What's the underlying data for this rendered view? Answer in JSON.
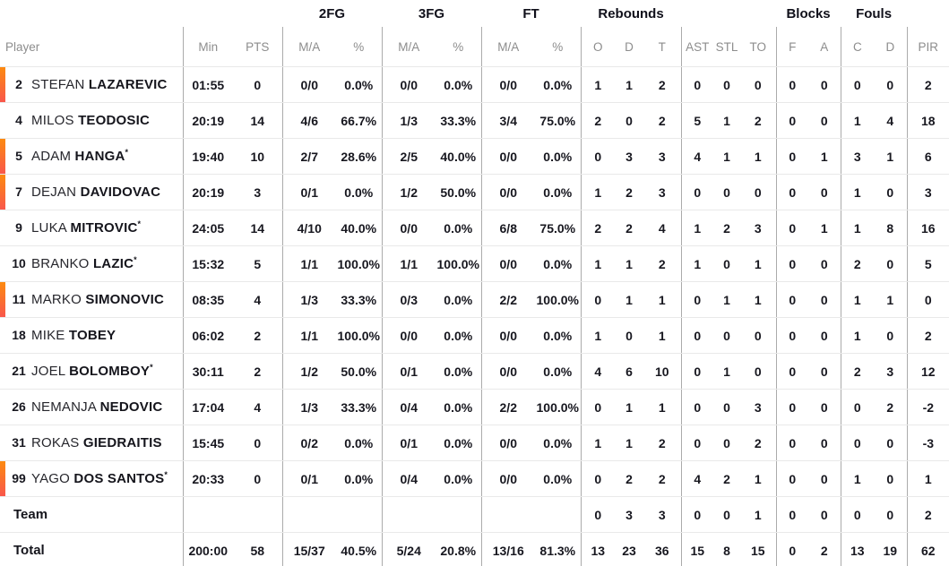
{
  "colors": {
    "on_court_gradient_top": "#FC8A10",
    "on_court_gradient_bottom": "#F9574B",
    "header_text": "#10101a",
    "subheader_text": "#8d8d8d",
    "row_separator": "#e9e9e9",
    "group_separator": "#ababab"
  },
  "header": {
    "groups": {
      "fg2": "2FG",
      "fg3": "3FG",
      "ft": "FT",
      "rebounds": "Rebounds",
      "blocks": "Blocks",
      "fouls": "Fouls"
    },
    "cols": {
      "player": "Player",
      "min": "Min",
      "pts": "PTS",
      "ma": "M/A",
      "pct": "%",
      "reb_o": "O",
      "reb_d": "D",
      "reb_t": "T",
      "ast": "AST",
      "stl": "STL",
      "to": "TO",
      "blk_f": "F",
      "blk_a": "A",
      "foul_c": "C",
      "foul_d": "D",
      "pir": "PIR"
    }
  },
  "players": [
    {
      "number": "2",
      "first": "STEFAN",
      "last": "LAZAREVIC",
      "star": "",
      "on_court": true,
      "min": "01:55",
      "pts": "0",
      "fg2_ma": "0/0",
      "fg2_pct": "0.0%",
      "fg3_ma": "0/0",
      "fg3_pct": "0.0%",
      "ft_ma": "0/0",
      "ft_pct": "0.0%",
      "reb_o": "1",
      "reb_d": "1",
      "reb_t": "2",
      "ast": "0",
      "stl": "0",
      "to": "0",
      "blk_f": "0",
      "blk_a": "0",
      "foul_c": "0",
      "foul_d": "0",
      "pir": "2"
    },
    {
      "number": "4",
      "first": "MILOS",
      "last": "TEODOSIC",
      "star": "",
      "on_court": false,
      "min": "20:19",
      "pts": "14",
      "fg2_ma": "4/6",
      "fg2_pct": "66.7%",
      "fg3_ma": "1/3",
      "fg3_pct": "33.3%",
      "ft_ma": "3/4",
      "ft_pct": "75.0%",
      "reb_o": "2",
      "reb_d": "0",
      "reb_t": "2",
      "ast": "5",
      "stl": "1",
      "to": "2",
      "blk_f": "0",
      "blk_a": "0",
      "foul_c": "1",
      "foul_d": "4",
      "pir": "18"
    },
    {
      "number": "5",
      "first": "ADAM",
      "last": "HANGA",
      "star": "*",
      "on_court": true,
      "min": "19:40",
      "pts": "10",
      "fg2_ma": "2/7",
      "fg2_pct": "28.6%",
      "fg3_ma": "2/5",
      "fg3_pct": "40.0%",
      "ft_ma": "0/0",
      "ft_pct": "0.0%",
      "reb_o": "0",
      "reb_d": "3",
      "reb_t": "3",
      "ast": "4",
      "stl": "1",
      "to": "1",
      "blk_f": "0",
      "blk_a": "1",
      "foul_c": "3",
      "foul_d": "1",
      "pir": "6"
    },
    {
      "number": "7",
      "first": "DEJAN",
      "last": "DAVIDOVAC",
      "star": "",
      "on_court": true,
      "min": "20:19",
      "pts": "3",
      "fg2_ma": "0/1",
      "fg2_pct": "0.0%",
      "fg3_ma": "1/2",
      "fg3_pct": "50.0%",
      "ft_ma": "0/0",
      "ft_pct": "0.0%",
      "reb_o": "1",
      "reb_d": "2",
      "reb_t": "3",
      "ast": "0",
      "stl": "0",
      "to": "0",
      "blk_f": "0",
      "blk_a": "0",
      "foul_c": "1",
      "foul_d": "0",
      "pir": "3"
    },
    {
      "number": "9",
      "first": "LUKA",
      "last": "MITROVIC",
      "star": "*",
      "on_court": false,
      "min": "24:05",
      "pts": "14",
      "fg2_ma": "4/10",
      "fg2_pct": "40.0%",
      "fg3_ma": "0/0",
      "fg3_pct": "0.0%",
      "ft_ma": "6/8",
      "ft_pct": "75.0%",
      "reb_o": "2",
      "reb_d": "2",
      "reb_t": "4",
      "ast": "1",
      "stl": "2",
      "to": "3",
      "blk_f": "0",
      "blk_a": "1",
      "foul_c": "1",
      "foul_d": "8",
      "pir": "16"
    },
    {
      "number": "10",
      "first": "BRANKO",
      "last": "LAZIC",
      "star": "*",
      "on_court": false,
      "min": "15:32",
      "pts": "5",
      "fg2_ma": "1/1",
      "fg2_pct": "100.0%",
      "fg3_ma": "1/1",
      "fg3_pct": "100.0%",
      "ft_ma": "0/0",
      "ft_pct": "0.0%",
      "reb_o": "1",
      "reb_d": "1",
      "reb_t": "2",
      "ast": "1",
      "stl": "0",
      "to": "1",
      "blk_f": "0",
      "blk_a": "0",
      "foul_c": "2",
      "foul_d": "0",
      "pir": "5"
    },
    {
      "number": "11",
      "first": "MARKO",
      "last": "SIMONOVIC",
      "star": "",
      "on_court": true,
      "min": "08:35",
      "pts": "4",
      "fg2_ma": "1/3",
      "fg2_pct": "33.3%",
      "fg3_ma": "0/3",
      "fg3_pct": "0.0%",
      "ft_ma": "2/2",
      "ft_pct": "100.0%",
      "reb_o": "0",
      "reb_d": "1",
      "reb_t": "1",
      "ast": "0",
      "stl": "1",
      "to": "1",
      "blk_f": "0",
      "blk_a": "0",
      "foul_c": "1",
      "foul_d": "1",
      "pir": "0"
    },
    {
      "number": "18",
      "first": "MIKE",
      "last": "TOBEY",
      "star": "",
      "on_court": false,
      "min": "06:02",
      "pts": "2",
      "fg2_ma": "1/1",
      "fg2_pct": "100.0%",
      "fg3_ma": "0/0",
      "fg3_pct": "0.0%",
      "ft_ma": "0/0",
      "ft_pct": "0.0%",
      "reb_o": "1",
      "reb_d": "0",
      "reb_t": "1",
      "ast": "0",
      "stl": "0",
      "to": "0",
      "blk_f": "0",
      "blk_a": "0",
      "foul_c": "1",
      "foul_d": "0",
      "pir": "2"
    },
    {
      "number": "21",
      "first": "JOEL",
      "last": "BOLOMBOY",
      "star": "*",
      "on_court": false,
      "min": "30:11",
      "pts": "2",
      "fg2_ma": "1/2",
      "fg2_pct": "50.0%",
      "fg3_ma": "0/1",
      "fg3_pct": "0.0%",
      "ft_ma": "0/0",
      "ft_pct": "0.0%",
      "reb_o": "4",
      "reb_d": "6",
      "reb_t": "10",
      "ast": "0",
      "stl": "1",
      "to": "0",
      "blk_f": "0",
      "blk_a": "0",
      "foul_c": "2",
      "foul_d": "3",
      "pir": "12"
    },
    {
      "number": "26",
      "first": "NEMANJA",
      "last": "NEDOVIC",
      "star": "",
      "on_court": false,
      "min": "17:04",
      "pts": "4",
      "fg2_ma": "1/3",
      "fg2_pct": "33.3%",
      "fg3_ma": "0/4",
      "fg3_pct": "0.0%",
      "ft_ma": "2/2",
      "ft_pct": "100.0%",
      "reb_o": "0",
      "reb_d": "1",
      "reb_t": "1",
      "ast": "0",
      "stl": "0",
      "to": "3",
      "blk_f": "0",
      "blk_a": "0",
      "foul_c": "0",
      "foul_d": "2",
      "pir": "-2"
    },
    {
      "number": "31",
      "first": "ROKAS",
      "last": "GIEDRAITIS",
      "star": "",
      "on_court": false,
      "min": "15:45",
      "pts": "0",
      "fg2_ma": "0/2",
      "fg2_pct": "0.0%",
      "fg3_ma": "0/1",
      "fg3_pct": "0.0%",
      "ft_ma": "0/0",
      "ft_pct": "0.0%",
      "reb_o": "1",
      "reb_d": "1",
      "reb_t": "2",
      "ast": "0",
      "stl": "0",
      "to": "2",
      "blk_f": "0",
      "blk_a": "0",
      "foul_c": "0",
      "foul_d": "0",
      "pir": "-3"
    },
    {
      "number": "99",
      "first": "YAGO",
      "last": "DOS SANTOS",
      "star": "*",
      "on_court": true,
      "min": "20:33",
      "pts": "0",
      "fg2_ma": "0/1",
      "fg2_pct": "0.0%",
      "fg3_ma": "0/4",
      "fg3_pct": "0.0%",
      "ft_ma": "0/0",
      "ft_pct": "0.0%",
      "reb_o": "0",
      "reb_d": "2",
      "reb_t": "2",
      "ast": "4",
      "stl": "2",
      "to": "1",
      "blk_f": "0",
      "blk_a": "0",
      "foul_c": "1",
      "foul_d": "0",
      "pir": "1"
    }
  ],
  "team": {
    "label": "Team",
    "reb_o": "0",
    "reb_d": "3",
    "reb_t": "3",
    "ast": "0",
    "stl": "0",
    "to": "1",
    "blk_f": "0",
    "blk_a": "0",
    "foul_c": "0",
    "foul_d": "0",
    "pir": "2"
  },
  "total": {
    "label": "Total",
    "min": "200:00",
    "pts": "58",
    "fg2_ma": "15/37",
    "fg2_pct": "40.5%",
    "fg3_ma": "5/24",
    "fg3_pct": "20.8%",
    "ft_ma": "13/16",
    "ft_pct": "81.3%",
    "reb_o": "13",
    "reb_d": "23",
    "reb_t": "36",
    "ast": "15",
    "stl": "8",
    "to": "15",
    "blk_f": "0",
    "blk_a": "2",
    "foul_c": "13",
    "foul_d": "19",
    "pir": "62"
  }
}
